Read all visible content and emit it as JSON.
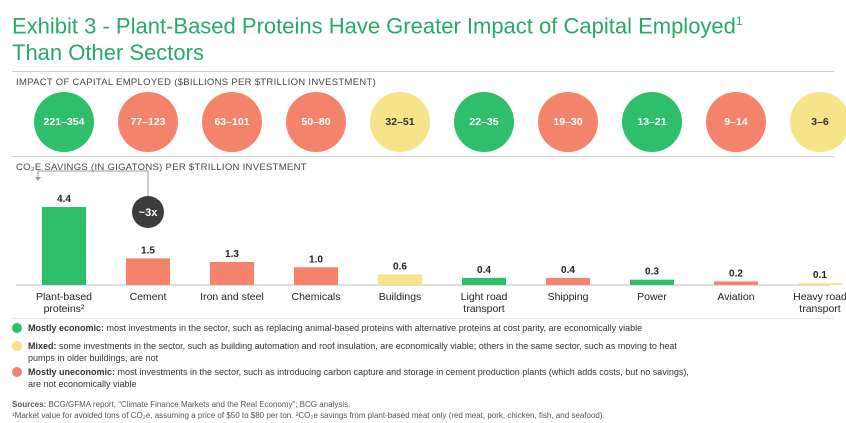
{
  "title": {
    "line1": "Exhibit 3 - Plant-Based Proteins Have Greater Impact of Capital Employed",
    "sup": "1",
    "line2": "Than Other Sectors"
  },
  "impact_label": "IMPACT OF CAPITAL EMPLOYED ($BILLIONS PER $TRILLION INVESTMENT)",
  "savings_label": "CO₂E SAVINGS (IN GIGATONS) PER $TRILLION INVESTMENT",
  "multiplier_label": "~3x",
  "colors": {
    "economic": "#2fbf6b",
    "mixed": "#f7e38a",
    "uneconomic": "#f3836b",
    "title": "#2aa866"
  },
  "bubbles": [
    {
      "text": "221–354",
      "category": "economic"
    },
    {
      "text": "77–123",
      "category": "uneconomic"
    },
    {
      "text": "63–101",
      "category": "uneconomic"
    },
    {
      "text": "50–80",
      "category": "uneconomic"
    },
    {
      "text": "32–51",
      "category": "mixed"
    },
    {
      "text": "22–35",
      "category": "economic"
    },
    {
      "text": "19–30",
      "category": "uneconomic"
    },
    {
      "text": "13–21",
      "category": "economic"
    },
    {
      "text": "9–14",
      "category": "uneconomic"
    },
    {
      "text": "3–6",
      "category": "mixed"
    }
  ],
  "chart_data": {
    "type": "bar",
    "title": "",
    "xlabel": "",
    "ylabel": "",
    "categories": [
      [
        "Plant-based",
        "proteins²"
      ],
      [
        "Cement"
      ],
      [
        "Iron and steel"
      ],
      [
        "Chemicals"
      ],
      [
        "Buildings"
      ],
      [
        "Light road",
        "transport"
      ],
      [
        "Shipping"
      ],
      [
        "Power"
      ],
      [
        "Aviation"
      ],
      [
        "Heavy road",
        "transport"
      ]
    ],
    "values": [
      4.4,
      1.5,
      1.3,
      1.0,
      0.6,
      0.4,
      0.4,
      0.3,
      0.2,
      0.1
    ],
    "value_labels": [
      "4.4",
      "1.5",
      "1.3",
      "1.0",
      "0.6",
      "0.4",
      "0.4",
      "0.3",
      "0.2",
      "0.1"
    ],
    "bar_categories": [
      "economic",
      "uneconomic",
      "uneconomic",
      "uneconomic",
      "mixed",
      "economic",
      "uneconomic",
      "economic",
      "uneconomic",
      "mixed"
    ],
    "ylim": [
      0,
      4.4
    ]
  },
  "legend": [
    {
      "category": "economic",
      "bold": "Mostly economic:",
      "text": " most investments in the sector, such as replacing animal-based proteins with alternative proteins at cost parity, are economically viable"
    },
    {
      "category": "mixed",
      "bold": "Mixed:",
      "text": " some investments in the sector, such as building automation and roof insulation, are economically viable; others in the same sector, such as moving to heat pumps in older buildings, are not"
    },
    {
      "category": "uneconomic",
      "bold": "Mostly uneconomic:",
      "text": " most investments in the sector, such as introducing carbon capture and storage in cement production plants (which adds costs, but no savings), are not economically viable"
    }
  ],
  "notes": {
    "sources_bold": "Sources:",
    "sources_text": " BCG/GFMA report, “Climate Finance Markets and the Real Economy”; BCG analysis.",
    "footnote": "¹Market value for avoided tons of CO₂e, assuming a price of $50 to $80 per ton. ²CO₂e savings from plant-based meat only (red meat, pork, chicken, fish, and seafood)."
  }
}
